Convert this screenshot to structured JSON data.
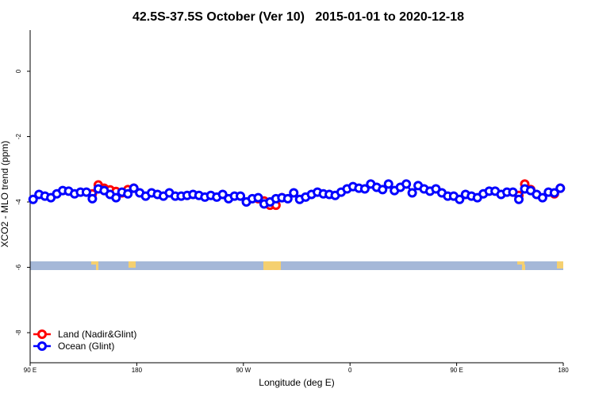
{
  "chart_data": {
    "type": "line",
    "title": "42.5S-37.5S October (Ver 10)   2015-01-01 to 2020-12-18",
    "xlabel": "Longitude (deg E)",
    "ylabel": "XCO2 - MLO trend (ppm)",
    "xlim": [
      90,
      540
    ],
    "ylim": [
      -8.92,
      1.26
    ],
    "xticks": [
      {
        "value": 90,
        "label": "90 E"
      },
      {
        "value": 180,
        "label": "180"
      },
      {
        "value": 270,
        "label": "90 W"
      },
      {
        "value": 360,
        "label": "0"
      },
      {
        "value": 450,
        "label": "90 E"
      },
      {
        "value": 540,
        "label": "180"
      }
    ],
    "yticks": [
      0,
      -2,
      -4,
      -6,
      -8
    ],
    "legend": "bottomleft",
    "x": [
      92.5,
      97.5,
      102.5,
      107.5,
      112.5,
      117.5,
      122.5,
      127.5,
      132.5,
      137.5,
      142.5,
      147.5,
      152.5,
      157.5,
      162.5,
      167.5,
      172.5,
      177.5,
      182.5,
      187.5,
      192.5,
      197.5,
      202.5,
      207.5,
      212.5,
      217.5,
      222.5,
      227.5,
      232.5,
      237.5,
      242.5,
      247.5,
      252.5,
      257.5,
      262.5,
      267.5,
      272.5,
      277.5,
      282.5,
      287.5,
      292.5,
      297.5,
      302.5,
      307.5,
      312.5,
      317.5,
      322.5,
      327.5,
      332.5,
      337.5,
      342.5,
      347.5,
      352.5,
      357.5,
      362.5,
      367.5,
      372.5,
      377.5,
      382.5,
      387.5,
      392.5,
      397.5,
      402.5,
      407.5,
      412.5,
      417.5,
      422.5,
      427.5,
      432.5,
      437.5,
      442.5,
      447.5,
      452.5,
      457.5,
      462.5,
      467.5,
      472.5,
      477.5,
      482.5,
      487.5,
      492.5,
      497.5,
      502.5,
      507.5,
      512.5,
      517.5,
      522.5,
      527.5,
      532.5,
      537.5
    ],
    "series": [
      {
        "name": "Land (Nadir&Glint)",
        "color": "#ff0000",
        "values": [
          null,
          null,
          null,
          null,
          null,
          null,
          null,
          null,
          null,
          null,
          -3.75,
          -3.48,
          -3.58,
          -3.63,
          -3.68,
          -3.72,
          -3.62,
          -3.58,
          null,
          null,
          null,
          null,
          null,
          null,
          null,
          null,
          null,
          null,
          null,
          null,
          null,
          null,
          null,
          null,
          null,
          null,
          null,
          null,
          -3.9,
          -3.97,
          -4.1,
          -4.1,
          -3.87,
          null,
          null,
          null,
          null,
          null,
          null,
          null,
          null,
          null,
          null,
          null,
          null,
          null,
          null,
          null,
          null,
          null,
          null,
          null,
          null,
          null,
          null,
          null,
          null,
          null,
          null,
          null,
          null,
          null,
          null,
          null,
          null,
          null,
          null,
          null,
          null,
          null,
          null,
          null,
          -3.8,
          -3.45,
          -3.62,
          null,
          null,
          null,
          -3.75,
          -3.58
        ]
      },
      {
        "name": "Ocean (Glint)",
        "color": "#0000ff",
        "values": [
          -3.92,
          -3.77,
          -3.82,
          -3.87,
          -3.75,
          -3.65,
          -3.67,
          -3.75,
          -3.7,
          -3.7,
          -3.9,
          -3.6,
          -3.65,
          -3.77,
          -3.87,
          -3.7,
          -3.75,
          -3.58,
          -3.72,
          -3.82,
          -3.72,
          -3.77,
          -3.82,
          -3.72,
          -3.82,
          -3.82,
          -3.8,
          -3.77,
          -3.8,
          -3.85,
          -3.8,
          -3.85,
          -3.77,
          -3.9,
          -3.82,
          -3.82,
          -4.0,
          -3.9,
          -3.87,
          -4.06,
          -4.0,
          -3.9,
          -3.87,
          -3.9,
          -3.72,
          -3.92,
          -3.85,
          -3.77,
          -3.7,
          -3.75,
          -3.77,
          -3.8,
          -3.7,
          -3.6,
          -3.53,
          -3.58,
          -3.6,
          -3.45,
          -3.55,
          -3.62,
          -3.45,
          -3.65,
          -3.55,
          -3.45,
          -3.72,
          -3.5,
          -3.6,
          -3.67,
          -3.6,
          -3.72,
          -3.82,
          -3.82,
          -3.92,
          -3.77,
          -3.82,
          -3.87,
          -3.75,
          -3.67,
          -3.67,
          -3.77,
          -3.7,
          -3.7,
          -3.92,
          -3.6,
          -3.65,
          -3.77,
          -3.87,
          -3.7,
          -3.72,
          -3.58
        ]
      }
    ]
  }
}
